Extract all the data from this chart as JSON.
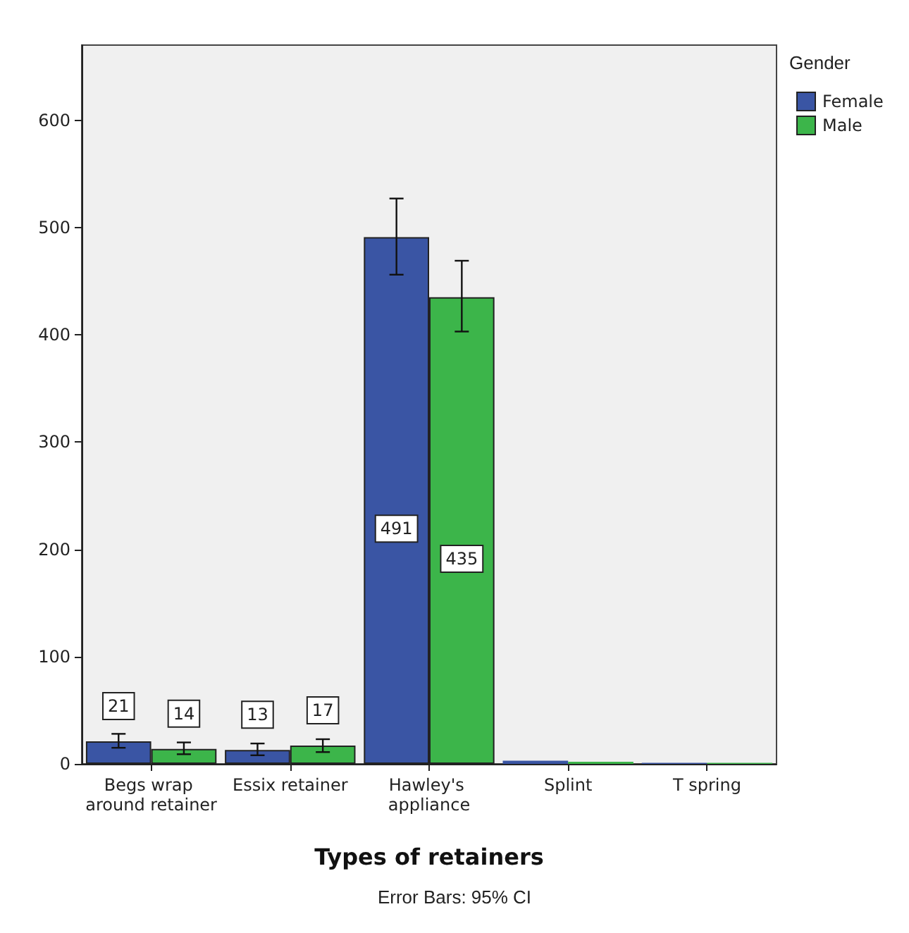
{
  "chart_data": {
    "type": "bar",
    "xlabel": "Types of retainers",
    "legend_title": "Gender",
    "annotations": [
      "Error Bars: 95% CI"
    ],
    "categories": [
      "Begs wrap around retainer",
      "Essix retainer",
      "Hawley's appliance",
      "Splint",
      "T spring"
    ],
    "series": [
      {
        "name": "Female",
        "color": "#3a55a4",
        "values": [
          21,
          13,
          491,
          3,
          1
        ],
        "errors": [
          [
            15,
            28
          ],
          [
            8,
            19
          ],
          [
            456,
            527
          ],
          null,
          null
        ],
        "value_labels": [
          "21",
          "13",
          "491",
          null,
          null
        ]
      },
      {
        "name": "Male",
        "color": "#3cb54a",
        "values": [
          14,
          17,
          435,
          2,
          1
        ],
        "errors": [
          [
            9,
            20
          ],
          [
            11,
            23
          ],
          [
            403,
            469
          ],
          null,
          null
        ],
        "value_labels": [
          "14",
          "17",
          "435",
          null,
          null
        ]
      }
    ],
    "ylim": [
      0,
      670
    ],
    "yticks": [
      0,
      100,
      200,
      300,
      400,
      500,
      600
    ],
    "grid": false,
    "legend": "top right"
  }
}
